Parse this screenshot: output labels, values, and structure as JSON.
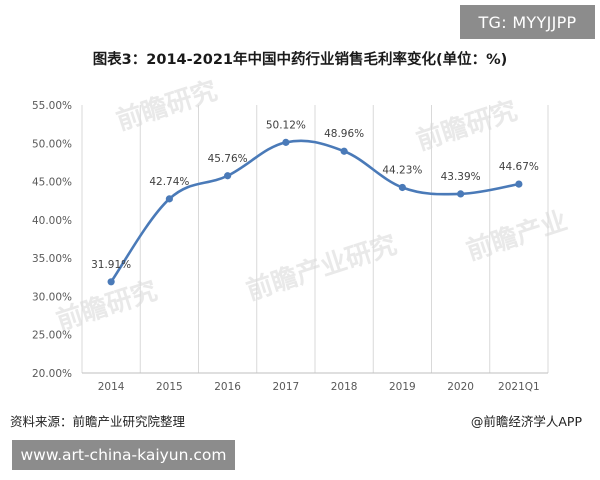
{
  "badge": {
    "text": "TG: MYYJJPP"
  },
  "footer": {
    "source": "资料来源：前瞻产业研究院整理",
    "credit": "@前瞻经济学人APP",
    "url": "www.art-china-kaiyun.com"
  },
  "chart_data": {
    "type": "line",
    "title": "图表3：2014-2021年中国中药行业销售毛利率变化(单位：%)",
    "categories": [
      "2014",
      "2015",
      "2016",
      "2017",
      "2018",
      "2019",
      "2020",
      "2021Q1"
    ],
    "series": [
      {
        "values": [
          31.91,
          42.74,
          45.76,
          50.12,
          48.96,
          44.23,
          43.39,
          44.67
        ],
        "labels": [
          "31.91%",
          "42.74%",
          "45.76%",
          "50.12%",
          "48.96%",
          "44.23%",
          "43.39%",
          "44.67%"
        ],
        "color": "#4a7ab8"
      }
    ],
    "ylim": [
      20,
      55
    ],
    "yticks": [
      "20.00%",
      "25.00%",
      "30.00%",
      "35.00%",
      "40.00%",
      "45.00%",
      "50.00%",
      "55.00%"
    ],
    "grid": "vertical",
    "smooth": true
  }
}
